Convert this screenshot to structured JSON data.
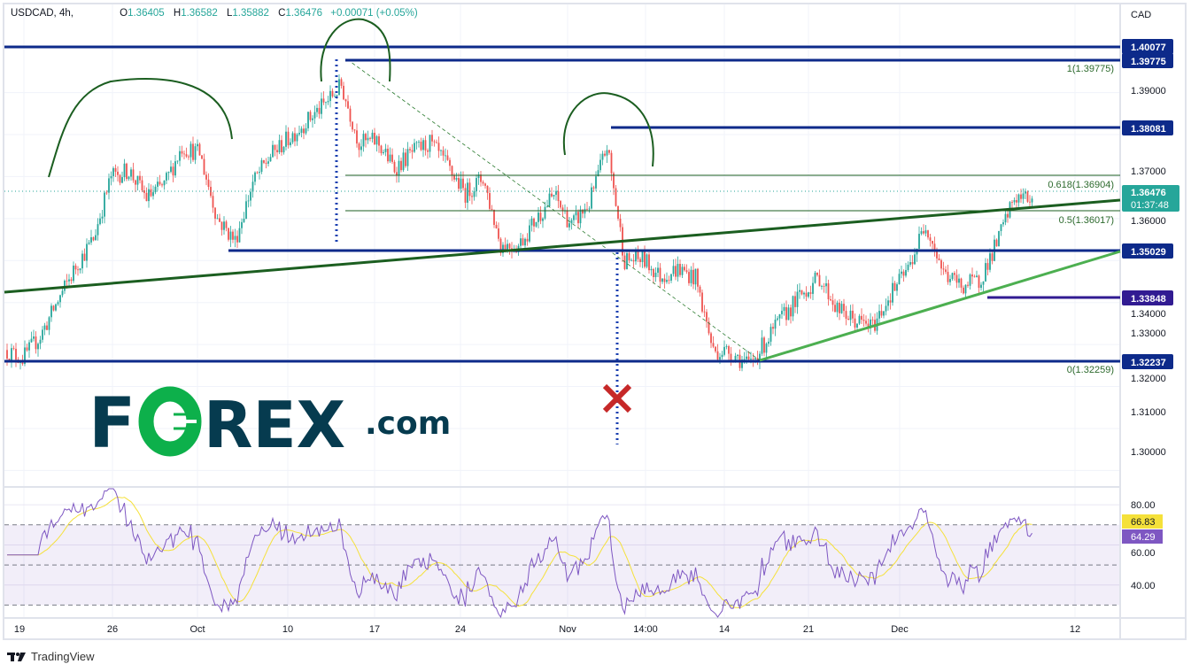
{
  "header": {
    "symbol": "USDCAD, 4h,",
    "open_label": "O",
    "open": "1.36405",
    "high_label": "H",
    "high": "1.36582",
    "low_label": "L",
    "low": "1.35882",
    "close_label": "C",
    "close": "1.36476",
    "change": "+0.00071 (+0.05%)"
  },
  "price_axis": {
    "currency": "CAD",
    "ticks": [
      "1.39000",
      "1.37000",
      "1.36000",
      "1.34000",
      "1.33000",
      "1.32000",
      "1.31000",
      "1.30000"
    ],
    "current_price": "1.36476",
    "countdown": "01:37:48"
  },
  "levels": [
    {
      "price": "1.40077",
      "color": "#0d2a8a"
    },
    {
      "price": "1.39775",
      "color": "#0d2a8a"
    },
    {
      "price": "1.38081",
      "color": "#0d2a8a"
    },
    {
      "price": "1.35029",
      "color": "#0d2a8a"
    },
    {
      "price": "1.33848",
      "color": "#311b92"
    },
    {
      "price": "1.32237",
      "color": "#0d2a8a"
    }
  ],
  "fib_labels": [
    "1(1.39775)",
    "0.618(1.36904)",
    "0.5(1.36017)",
    "0(1.32259)"
  ],
  "time_axis": [
    "19",
    "26",
    "Oct",
    "10",
    "17",
    "24",
    "Nov",
    "14:00",
    "14",
    "21",
    "Dec",
    "12"
  ],
  "rsi": {
    "ticks": [
      "80.00",
      "60.00",
      "40.00"
    ],
    "rsi_value": "64.29",
    "ma_value": "66.83",
    "rsi_color": "#7e57c2",
    "ma_color": "#f5e13a"
  },
  "logo": {
    "text_f": "F",
    "text_rest": "REX",
    "text_com": ".com",
    "brand_color": "#063b4f",
    "accent": "#0db04b"
  },
  "footer": {
    "brand": "TradingView"
  },
  "colors": {
    "up": "#26a69a",
    "down": "#ef5350"
  },
  "chart_data": {
    "type": "candlestick",
    "symbol": "USDCAD",
    "interval": "4h",
    "close_path": [
      1.3287,
      1.3267,
      1.332,
      1.3404,
      1.3485,
      1.3552,
      1.37,
      1.3715,
      1.365,
      1.368,
      1.377,
      1.3755,
      1.36,
      1.3547,
      1.3685,
      1.375,
      1.379,
      1.383,
      1.387,
      1.3917,
      1.378,
      1.3785,
      1.372,
      1.3757,
      1.378,
      1.3723,
      1.366,
      1.3697,
      1.3537,
      1.3536,
      1.3599,
      1.3656,
      1.3583,
      1.3636,
      1.3773,
      1.35,
      1.3505,
      1.3462,
      1.348,
      1.3459,
      1.3285,
      1.3283,
      1.325,
      1.3309,
      1.337,
      1.342,
      1.346,
      1.3384,
      1.3356,
      1.3342,
      1.342,
      1.348,
      1.359,
      1.347,
      1.344,
      1.345,
      1.354,
      1.365,
      1.36476
    ],
    "ylim": [
      1.2965,
      1.411
    ],
    "rsi_ylim": [
      24,
      88
    ]
  }
}
